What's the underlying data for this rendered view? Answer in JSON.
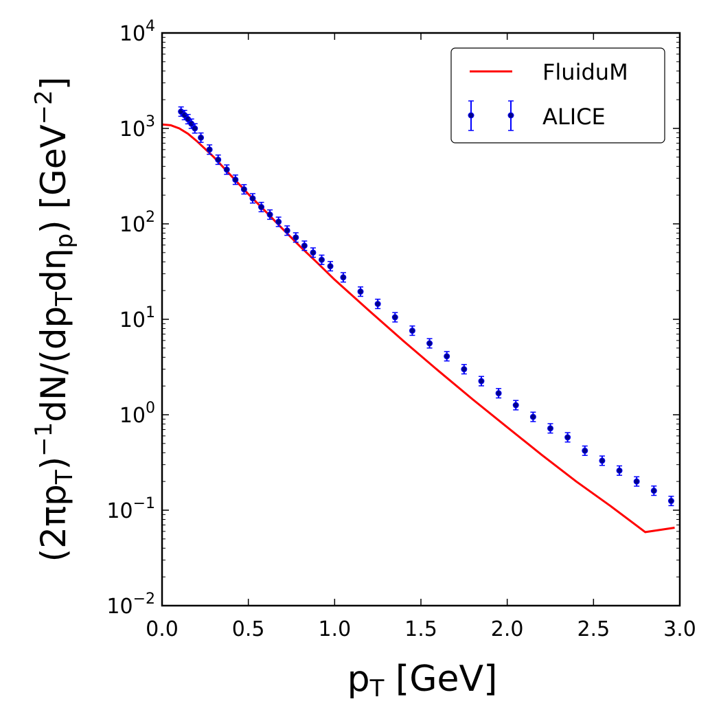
{
  "chart_data": {
    "type": "scatter",
    "xlabel_main": "p",
    "xlabel_sub": "T",
    "xlabel_unit": " [GeV]",
    "ylabel_parts": [
      "(2πp",
      "T",
      ")",
      "−1",
      "dN/(dp",
      "T",
      "dη",
      "p",
      ") [GeV",
      "−2",
      "]"
    ],
    "xlim": [
      0.0,
      3.0
    ],
    "ylim": [
      0.01,
      10000
    ],
    "yscale": "log",
    "xticks": [
      "0.0",
      "0.5",
      "1.0",
      "1.5",
      "2.0",
      "2.5",
      "3.0"
    ],
    "yticks": [
      {
        "base": "10",
        "exp": "−2"
      },
      {
        "base": "10",
        "exp": "−1"
      },
      {
        "base": "10",
        "exp": "0"
      },
      {
        "base": "10",
        "exp": "1"
      },
      {
        "base": "10",
        "exp": "2"
      },
      {
        "base": "10",
        "exp": "3"
      },
      {
        "base": "10",
        "exp": "4"
      }
    ],
    "legend_position": "top-right",
    "series": [
      {
        "name": "FluiduM",
        "kind": "line",
        "color": "#ff0000",
        "x": [
          0.0,
          0.05,
          0.1,
          0.15,
          0.2,
          0.3,
          0.4,
          0.5,
          0.6,
          0.7,
          0.8,
          0.9,
          1.0,
          1.2,
          1.4,
          1.6,
          1.8,
          2.0,
          2.2,
          2.4,
          2.6,
          2.8,
          2.97
        ],
        "y": [
          1100,
          1080,
          1000,
          880,
          740,
          500,
          320,
          205,
          135,
          88,
          58,
          39,
          26,
          12.3,
          5.9,
          2.9,
          1.45,
          0.74,
          0.38,
          0.2,
          0.11,
          0.059,
          0.0655
        ]
      },
      {
        "name": "ALICE",
        "kind": "errorbar",
        "color": "#0000ff",
        "marker_fill": "#00008b",
        "x": [
          0.11,
          0.13,
          0.15,
          0.17,
          0.19,
          0.225,
          0.275,
          0.325,
          0.375,
          0.425,
          0.475,
          0.525,
          0.575,
          0.625,
          0.675,
          0.725,
          0.775,
          0.825,
          0.875,
          0.925,
          0.975,
          1.05,
          1.15,
          1.25,
          1.35,
          1.45,
          1.55,
          1.65,
          1.75,
          1.85,
          1.95,
          2.05,
          2.15,
          2.25,
          2.35,
          2.45,
          2.55,
          2.65,
          2.75,
          2.85,
          2.95
        ],
        "y": [
          1500,
          1380,
          1250,
          1120,
          1000,
          800,
          600,
          470,
          370,
          290,
          230,
          185,
          150,
          125,
          105,
          85,
          72,
          59,
          50,
          42,
          36,
          27.5,
          19.5,
          14.5,
          10.5,
          7.6,
          5.6,
          4.1,
          3.0,
          2.25,
          1.68,
          1.26,
          0.95,
          0.72,
          0.58,
          0.42,
          0.33,
          0.26,
          0.2,
          0.16,
          0.125
        ]
      }
    ]
  }
}
